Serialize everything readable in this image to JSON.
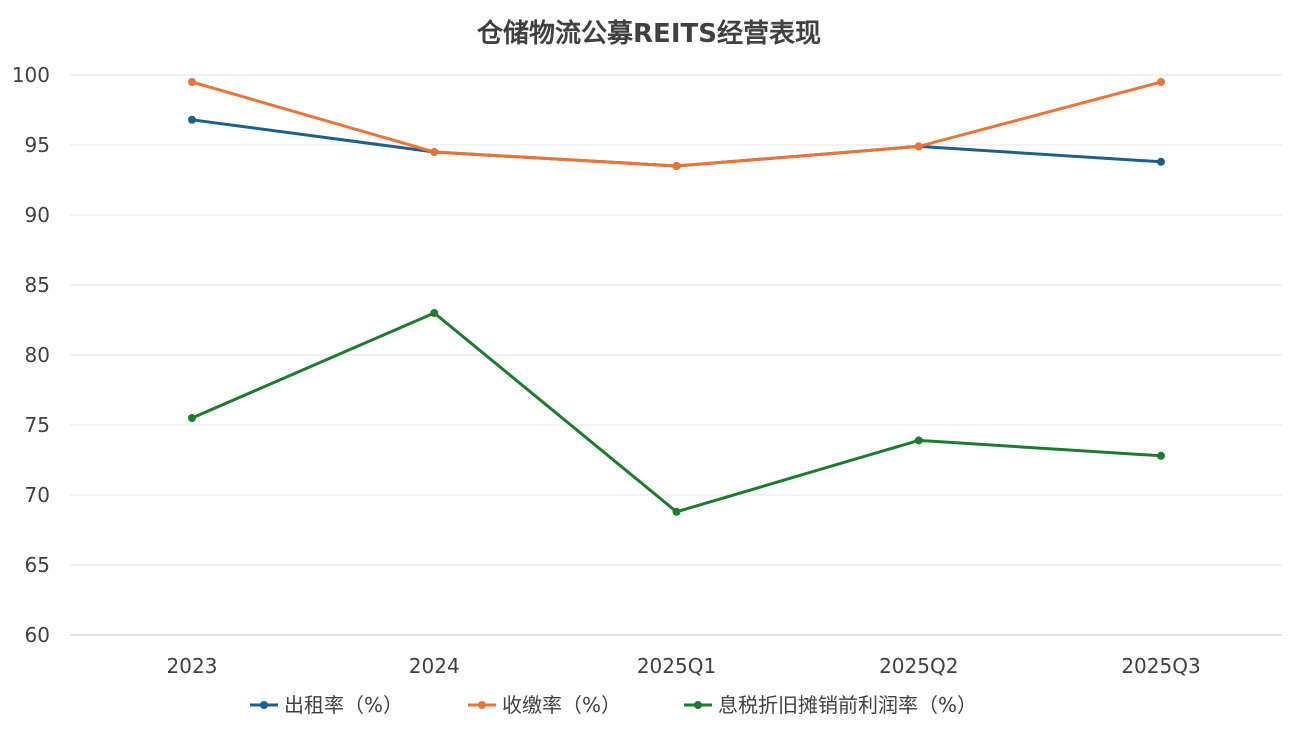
{
  "chart_data": {
    "type": "line",
    "title": "仓储物流公募REITS经营表现",
    "categories": [
      "2023",
      "2024",
      "2025Q1",
      "2025Q2",
      "2025Q3"
    ],
    "ylim": [
      60,
      100
    ],
    "yticks": [
      60,
      65,
      70,
      75,
      80,
      85,
      90,
      95,
      100
    ],
    "grid": true,
    "legend_position": "bottom",
    "series": [
      {
        "name": "出租率（%）",
        "color": "#1f5f8b",
        "values": [
          96.8,
          94.5,
          93.5,
          94.9,
          93.8
        ]
      },
      {
        "name": "收缴率（%）",
        "color": "#e8763a",
        "values": [
          99.5,
          94.5,
          93.5,
          94.9,
          99.5
        ]
      },
      {
        "name": "息税折旧摊销前利润率（%）",
        "color": "#1e7a2e",
        "values": [
          75.5,
          83.0,
          68.8,
          73.9,
          72.8
        ]
      }
    ]
  }
}
